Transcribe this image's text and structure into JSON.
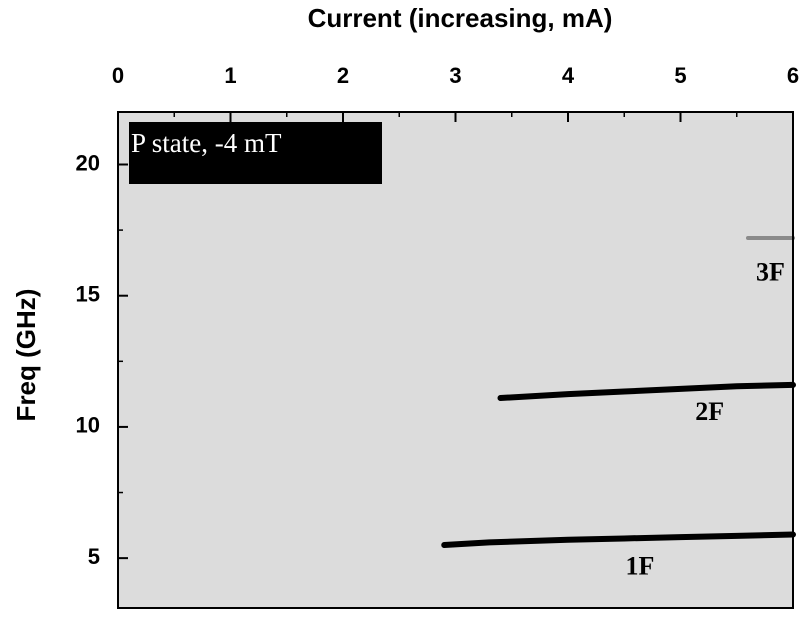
{
  "chart_data": {
    "type": "line",
    "xlabel": "Current (increasing, mA)",
    "ylabel": "Freq (GHz)",
    "inset_label": "P state, -4 mT",
    "xlim": [
      0,
      6
    ],
    "xticks": [
      0,
      1,
      2,
      3,
      4,
      5,
      6
    ],
    "ylim": [
      3.1,
      22
    ],
    "yticks": [
      5,
      10,
      15,
      20
    ],
    "background": "#dcdcdc",
    "series": [
      {
        "color": "#000000",
        "x": [
          2.9,
          3.3,
          4.0,
          4.5,
          5.0,
          5.5,
          6.0
        ],
        "values": [
          5.5,
          5.6,
          5.7,
          5.75,
          5.8,
          5.85,
          5.9
        ]
      },
      {
        "color": "#000000",
        "x": [
          3.4,
          4.0,
          4.5,
          5.0,
          5.5,
          6.0
        ],
        "values": [
          11.1,
          11.25,
          11.35,
          11.45,
          11.55,
          11.6
        ]
      },
      {
        "color": "#8a8a8a",
        "x": [
          5.6,
          6.0
        ],
        "values": [
          17.2,
          17.2
        ]
      }
    ],
    "annotations": [
      {
        "text": "3F",
        "x": 5.8,
        "y": 15.8
      },
      {
        "text": "2F",
        "x": 5.26,
        "y": 10.5
      },
      {
        "text": "1F",
        "x": 4.64,
        "y": 4.6
      }
    ]
  }
}
